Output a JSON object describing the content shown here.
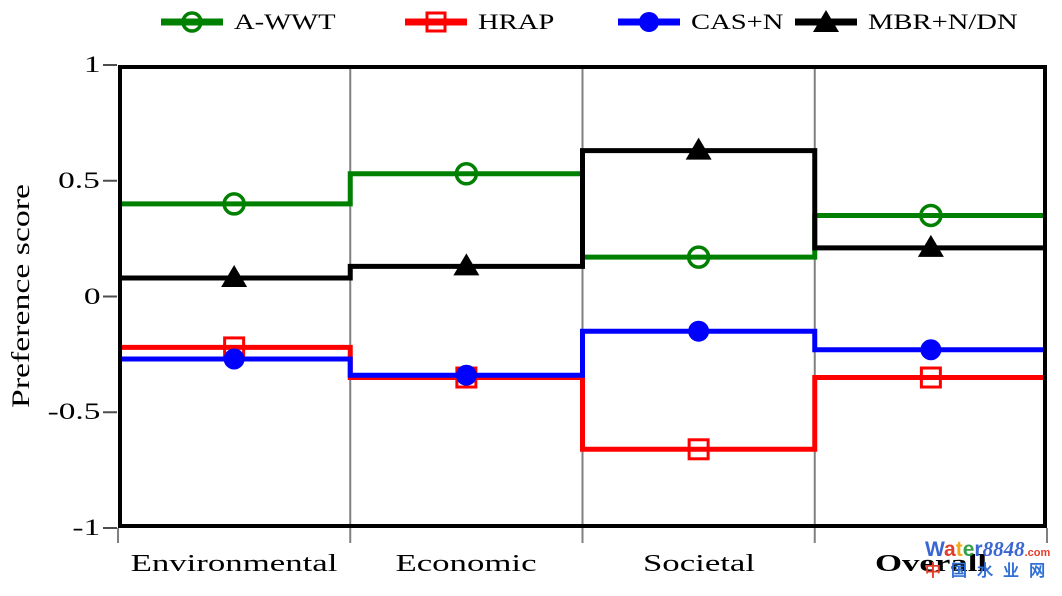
{
  "chart_data": {
    "type": "line",
    "subtype": "step-panels",
    "title": "",
    "xlabel": "",
    "ylabel": "Preference score",
    "ylim": [
      -1,
      1
    ],
    "grid": {
      "vertical_dividers": true,
      "horizontal": false,
      "divider_color": "#808080"
    },
    "legend_position": "top",
    "yticks": [
      {
        "value": 1,
        "label": "1"
      },
      {
        "value": 0.5,
        "label": "0.5"
      },
      {
        "value": 0,
        "label": "0"
      },
      {
        "value": -0.5,
        "label": "-0.5"
      },
      {
        "value": -1,
        "label": "-1"
      }
    ],
    "categories": [
      {
        "label": "Environmental",
        "bold": false
      },
      {
        "label": "Economic",
        "bold": false
      },
      {
        "label": "Societal",
        "bold": false
      },
      {
        "label": "Overall",
        "bold": true
      }
    ],
    "series": [
      {
        "name": "A-WWT",
        "color": "#008000",
        "marker": "circle-open",
        "values": [
          0.4,
          0.53,
          0.17,
          0.35
        ]
      },
      {
        "name": "HRAP",
        "color": "#ff0000",
        "marker": "square-open",
        "values": [
          -0.22,
          -0.35,
          -0.66,
          -0.35
        ]
      },
      {
        "name": "CAS+N",
        "color": "#0000ff",
        "marker": "circle-filled",
        "values": [
          -0.27,
          -0.34,
          -0.15,
          -0.23
        ]
      },
      {
        "name": "MBR+N/DN",
        "color": "#000000",
        "marker": "triangle-filled",
        "values": [
          0.08,
          0.13,
          0.63,
          0.21
        ]
      }
    ]
  },
  "watermark": {
    "brand_letters": [
      {
        "ch": "W",
        "color": "#3a66d1"
      },
      {
        "ch": "a",
        "color": "#e23d2a"
      },
      {
        "ch": "t",
        "color": "#f0a818"
      },
      {
        "ch": "e",
        "color": "#36a04a"
      },
      {
        "ch": "r",
        "color": "#3a66d1"
      }
    ],
    "brand_number": {
      "text": "8848",
      "color": "#3a66d1"
    },
    "brand_tld": {
      "text": ".com",
      "color": "#e23d2a"
    },
    "site_name_chars": [
      {
        "ch": "中",
        "color": "#e23d2a"
      },
      {
        "ch": "国",
        "color": "#2f6fd6"
      },
      {
        "ch": "水",
        "color": "#2f6fd6"
      },
      {
        "ch": "业",
        "color": "#2f6fd6"
      },
      {
        "ch": "网",
        "color": "#2f6fd6"
      }
    ]
  }
}
